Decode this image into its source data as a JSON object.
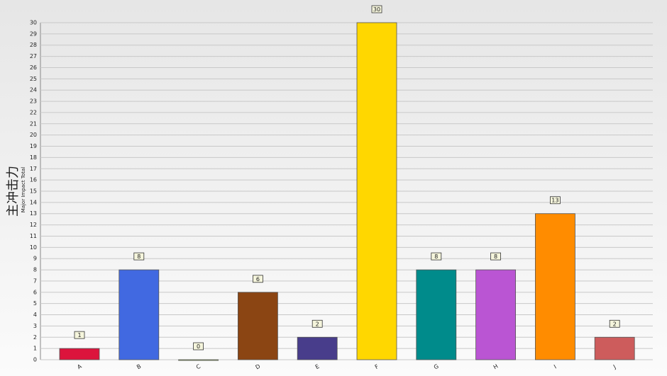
{
  "chart_data": {
    "type": "bar",
    "ylabel": "主冲击力",
    "ylabel_secondary": "Major Impact Total",
    "categories": [
      "A",
      "B",
      "C",
      "D",
      "E",
      "F",
      "G",
      "H",
      "I",
      "J"
    ],
    "values": [
      1,
      8,
      0,
      6,
      2,
      30,
      8,
      8,
      13,
      2
    ],
    "colors": [
      "#dc143c",
      "#4169e1",
      "#9acd32",
      "#8b4513",
      "#483d8b",
      "#ffd700",
      "#008b8b",
      "#ba55d3",
      "#ff8c00",
      "#cd5c5c"
    ],
    "ylim": [
      0,
      30
    ],
    "yticks": [
      0,
      1,
      2,
      3,
      4,
      5,
      6,
      7,
      8,
      9,
      10,
      11,
      12,
      13,
      14,
      15,
      16,
      17,
      18,
      19,
      20,
      21,
      22,
      23,
      24,
      25,
      26,
      27,
      28,
      29,
      30
    ],
    "grid": true
  }
}
